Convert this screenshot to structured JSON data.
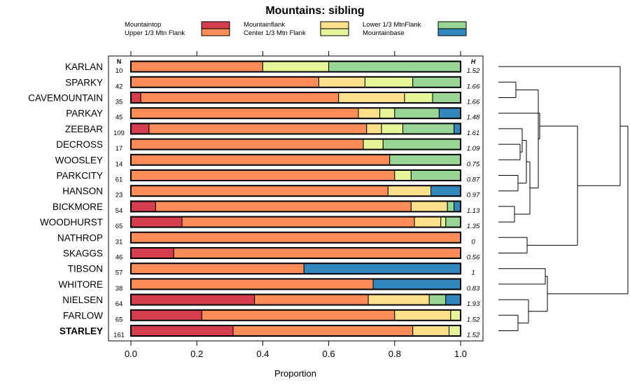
{
  "chart_data": {
    "type": "bar",
    "stacked": true,
    "orientation": "horizontal",
    "title": "Mountains: sibling",
    "xlabel": "Proportion",
    "xlim": [
      0,
      1
    ],
    "xticks": [
      0.0,
      0.2,
      0.4,
      0.6,
      0.8,
      1.0
    ],
    "xtick_labels": [
      "0.0",
      "0.2",
      "0.4",
      "0.6",
      "0.8",
      "1.0"
    ],
    "n_header": "N",
    "h_header": "H",
    "legend": [
      {
        "name": "Mountaintop",
        "color": "#D53E4F"
      },
      {
        "name": "Upper 1/3 Mtn Flank",
        "color": "#FC8D59"
      },
      {
        "name": "Mountainflank",
        "color": "#FEE08B"
      },
      {
        "name": "Center 1/3 Mtn Flank",
        "color": "#E6F598"
      },
      {
        "name": "Lower 1/3 MtnFlank",
        "color": "#99D594"
      },
      {
        "name": "Mountainbase",
        "color": "#3288BD"
      }
    ],
    "rows": [
      {
        "name": "KARLAN",
        "n": "10",
        "h": "1.52",
        "bold": false,
        "values": [
          0,
          0.4,
          0,
          0.2,
          0.4,
          0
        ]
      },
      {
        "name": "SPARKY",
        "n": "42",
        "h": "1.66",
        "bold": false,
        "values": [
          0,
          0.57,
          0.14,
          0.145,
          0.145,
          0
        ]
      },
      {
        "name": "CAVEMOUNTAIN",
        "n": "35",
        "h": "1.66",
        "bold": false,
        "values": [
          0.03,
          0.6,
          0.2,
          0.085,
          0.085,
          0
        ]
      },
      {
        "name": "PARKAY",
        "n": "45",
        "h": "1.48",
        "bold": false,
        "values": [
          0,
          0.69,
          0.065,
          0.045,
          0.135,
          0.065
        ]
      },
      {
        "name": "ZEEBAR",
        "n": "109",
        "h": "1.61",
        "bold": false,
        "values": [
          0.055,
          0.66,
          0.045,
          0.065,
          0.155,
          0.02
        ]
      },
      {
        "name": "DECROSS",
        "n": "17",
        "h": "1.09",
        "bold": false,
        "values": [
          0,
          0.705,
          0,
          0.06,
          0.235,
          0
        ]
      },
      {
        "name": "WOOSLEY",
        "n": "14",
        "h": "0.75",
        "bold": false,
        "values": [
          0,
          0.785,
          0,
          0,
          0.215,
          0
        ]
      },
      {
        "name": "PARKCITY",
        "n": "61",
        "h": "0.87",
        "bold": false,
        "values": [
          0,
          0.8,
          0,
          0.05,
          0.15,
          0
        ]
      },
      {
        "name": "HANSON",
        "n": "23",
        "h": "0.97",
        "bold": false,
        "values": [
          0,
          0.78,
          0.13,
          0,
          0,
          0.09
        ]
      },
      {
        "name": "BICKMORE",
        "n": "54",
        "h": "1.13",
        "bold": false,
        "values": [
          0.075,
          0.775,
          0.11,
          0,
          0.02,
          0.02
        ]
      },
      {
        "name": "WOODHURST",
        "n": "65",
        "h": "1.35",
        "bold": false,
        "values": [
          0.155,
          0.705,
          0.08,
          0.015,
          0.045,
          0
        ]
      },
      {
        "name": "NATHROP",
        "n": "31",
        "h": "0",
        "bold": false,
        "values": [
          0,
          1.0,
          0,
          0,
          0,
          0
        ]
      },
      {
        "name": "SKAGGS",
        "n": "46",
        "h": "0.56",
        "bold": false,
        "values": [
          0.13,
          0.87,
          0,
          0,
          0,
          0
        ]
      },
      {
        "name": "TIBSON",
        "n": "57",
        "h": "1",
        "bold": false,
        "values": [
          0,
          0.525,
          0,
          0,
          0,
          0.475
        ]
      },
      {
        "name": "WHITORE",
        "n": "38",
        "h": "0.83",
        "bold": false,
        "values": [
          0,
          0.735,
          0,
          0,
          0,
          0.265
        ]
      },
      {
        "name": "NIELSEN",
        "n": "64",
        "h": "1.93",
        "bold": false,
        "values": [
          0.375,
          0.345,
          0.185,
          0,
          0.05,
          0.045
        ]
      },
      {
        "name": "FARLOW",
        "n": "65",
        "h": "1.52",
        "bold": false,
        "values": [
          0.215,
          0.585,
          0.17,
          0.03,
          0,
          0
        ]
      },
      {
        "name": "STARLEY",
        "n": "161",
        "h": "1.52",
        "bold": true,
        "values": [
          0.31,
          0.545,
          0.11,
          0.035,
          0,
          0
        ]
      }
    ],
    "dendrogram": "hierarchical clustering tree of the 18 rows (drawn on the right)"
  }
}
